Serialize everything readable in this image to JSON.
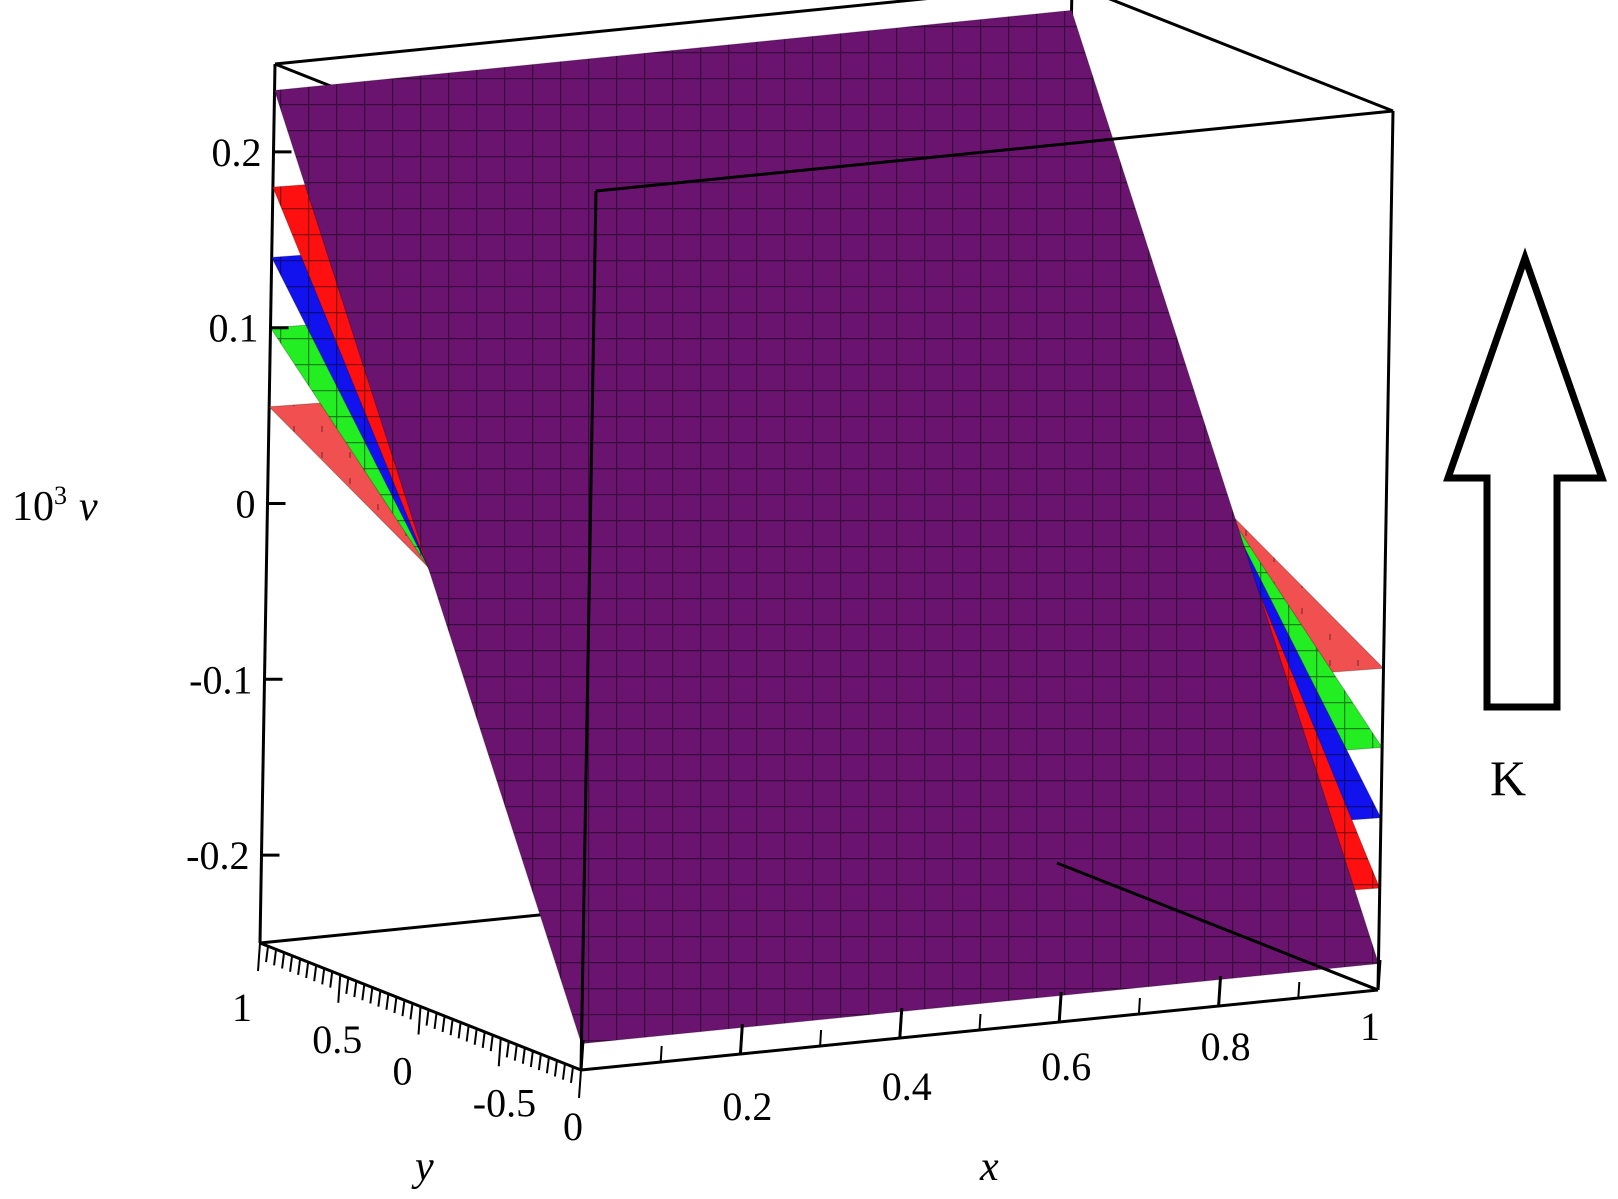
{
  "chart_data": {
    "type": "surface",
    "zlabel_prefix": "10",
    "zlabel_exp": "3",
    "zlabel_var": "v",
    "xlabel": "x",
    "ylabel": "y",
    "annotation": "K",
    "x_range": [
      0,
      1
    ],
    "y_range": [
      -1,
      1
    ],
    "z_range": [
      -0.25,
      0.25
    ],
    "x_ticks": [
      {
        "value": 0,
        "label": "0"
      },
      {
        "value": 0.2,
        "label": "0.2"
      },
      {
        "value": 0.4,
        "label": "0.4"
      },
      {
        "value": 0.6,
        "label": "0.6"
      },
      {
        "value": 0.8,
        "label": "0.8"
      },
      {
        "value": 1,
        "label": "1"
      }
    ],
    "y_ticks": [
      {
        "value": 1,
        "label": "1"
      },
      {
        "value": 0.5,
        "label": "0.5"
      },
      {
        "value": 0,
        "label": "0"
      },
      {
        "value": -0.5,
        "label": "-0.5"
      }
    ],
    "z_ticks": [
      {
        "value": 0.2,
        "label": "0.2"
      },
      {
        "value": 0.1,
        "label": "0.1"
      },
      {
        "value": 0,
        "label": "0"
      },
      {
        "value": -0.1,
        "label": "-0.1"
      },
      {
        "value": -0.2,
        "label": "-0.2"
      }
    ],
    "series": [
      {
        "color": "#6a1470",
        "amplitude": 0.235,
        "grid": "dark"
      },
      {
        "color": "#ff1010",
        "amplitude": 0.18,
        "grid": "dark"
      },
      {
        "color": "#1212ee",
        "amplitude": 0.14,
        "grid": "dark"
      },
      {
        "color": "#22ee22",
        "amplitude": 0.1,
        "grid": "dark"
      },
      {
        "color": "#f05050",
        "amplitude": 0.055,
        "grid": "sparse"
      }
    ]
  }
}
